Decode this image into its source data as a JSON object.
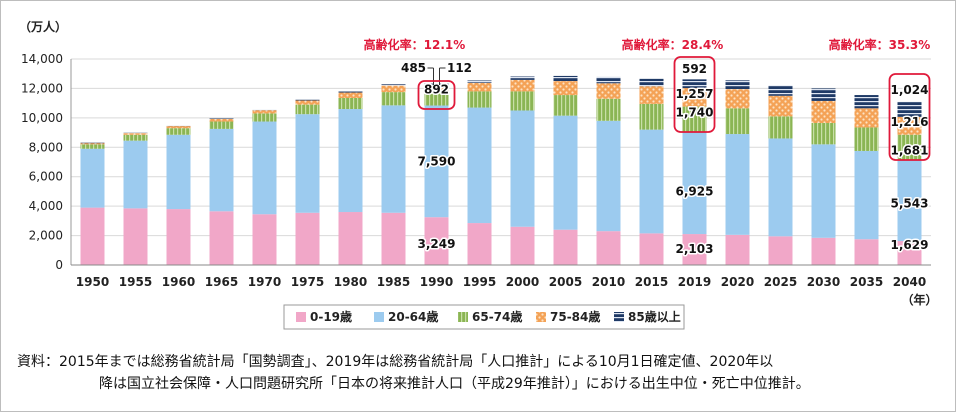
{
  "chart_data": {
    "type": "bar",
    "stacked": true,
    "unit_label": "（万人）",
    "x_unit_label": "（年）",
    "categories": [
      "1950",
      "1955",
      "1960",
      "1965",
      "1970",
      "1975",
      "1980",
      "1985",
      "1990",
      "1995",
      "2000",
      "2005",
      "2010",
      "2015",
      "2019",
      "2020",
      "2025",
      "2030",
      "2035",
      "2040"
    ],
    "ylim": [
      0,
      14000
    ],
    "yticks": [
      "0",
      "2,000",
      "4,000",
      "6,000",
      "8,000",
      "10,000",
      "12,000",
      "14,000"
    ],
    "ytick_values": [
      0,
      2000,
      4000,
      6000,
      8000,
      10000,
      12000,
      14000
    ],
    "grid": true,
    "legend_position": "bottom",
    "series": [
      {
        "name": "0-19歳",
        "color": "#f1a7c8",
        "values": [
          3900,
          3850,
          3800,
          3650,
          3450,
          3550,
          3600,
          3550,
          3249,
          2850,
          2600,
          2400,
          2300,
          2150,
          2103,
          2050,
          1950,
          1850,
          1750,
          1629
        ]
      },
      {
        "name": "20-64歳",
        "color": "#9ccbef",
        "values": [
          4000,
          4600,
          5050,
          5600,
          6300,
          6700,
          7000,
          7300,
          7590,
          7850,
          7900,
          7750,
          7500,
          7050,
          6925,
          6850,
          6650,
          6350,
          6000,
          5543
        ]
      },
      {
        "name": "65-74歳",
        "color": "#8bb554",
        "values": [
          300,
          400,
          450,
          500,
          550,
          650,
          750,
          900,
          892,
          1100,
          1300,
          1400,
          1500,
          1750,
          1740,
          1750,
          1500,
          1450,
          1600,
          1681
        ]
      },
      {
        "name": "75-84歳",
        "color": "#f4a256",
        "values": [
          100,
          120,
          150,
          180,
          220,
          280,
          370,
          440,
          485,
          580,
          780,
          950,
          1050,
          1200,
          1257,
          1300,
          1400,
          1500,
          1300,
          1216
        ]
      },
      {
        "name": "85歳以上",
        "color": "#1f3a66",
        "values": [
          10,
          15,
          20,
          25,
          35,
          50,
          70,
          90,
          112,
          160,
          230,
          350,
          430,
          500,
          592,
          600,
          700,
          850,
          900,
          1024
        ]
      }
    ],
    "data_labels": [
      {
        "category": "1990",
        "series": "0-19歳",
        "text": "3,249"
      },
      {
        "category": "1990",
        "series": "20-64歳",
        "text": "7,590"
      },
      {
        "category": "1990",
        "series": "65-74歳",
        "text": "892"
      },
      {
        "category": "1990",
        "series": "75-84歳",
        "text": "485"
      },
      {
        "category": "1990",
        "series": "85歳以上",
        "text": "112"
      },
      {
        "category": "2019",
        "series": "0-19歳",
        "text": "2,103"
      },
      {
        "category": "2019",
        "series": "20-64歳",
        "text": "6,925"
      },
      {
        "category": "2019",
        "series": "65-74歳",
        "text": "1,740"
      },
      {
        "category": "2019",
        "series": "75-84歳",
        "text": "1,257"
      },
      {
        "category": "2019",
        "series": "85歳以上",
        "text": "592"
      },
      {
        "category": "2040",
        "series": "0-19歳",
        "text": "1,629"
      },
      {
        "category": "2040",
        "series": "20-64歳",
        "text": "5,543"
      },
      {
        "category": "2040",
        "series": "65-74歳",
        "text": "1,681"
      },
      {
        "category": "2040",
        "series": "75-84歳",
        "text": "1,216"
      },
      {
        "category": "2040",
        "series": "85歳以上",
        "text": "1,024"
      }
    ],
    "annotations": [
      {
        "category": "1990",
        "text": "高齢化率：12.1%",
        "color": "#e0193a"
      },
      {
        "category": "2019",
        "text": "高齢化率：28.4%",
        "color": "#e0193a"
      },
      {
        "category": "2040",
        "text": "高齢化率：35.3%",
        "color": "#e0193a"
      }
    ],
    "highlight_color": "#e0193a"
  },
  "source": {
    "line1": "資料：2015年までは総務省統計局「国勢調査」、2019年は総務省統計局「人口推計」による10月1日確定値、2020年以",
    "line2": "降は国立社会保障・人口問題研究所「日本の将来推計人口（平成29年推計）」における出生中位・死亡中位推計。"
  }
}
